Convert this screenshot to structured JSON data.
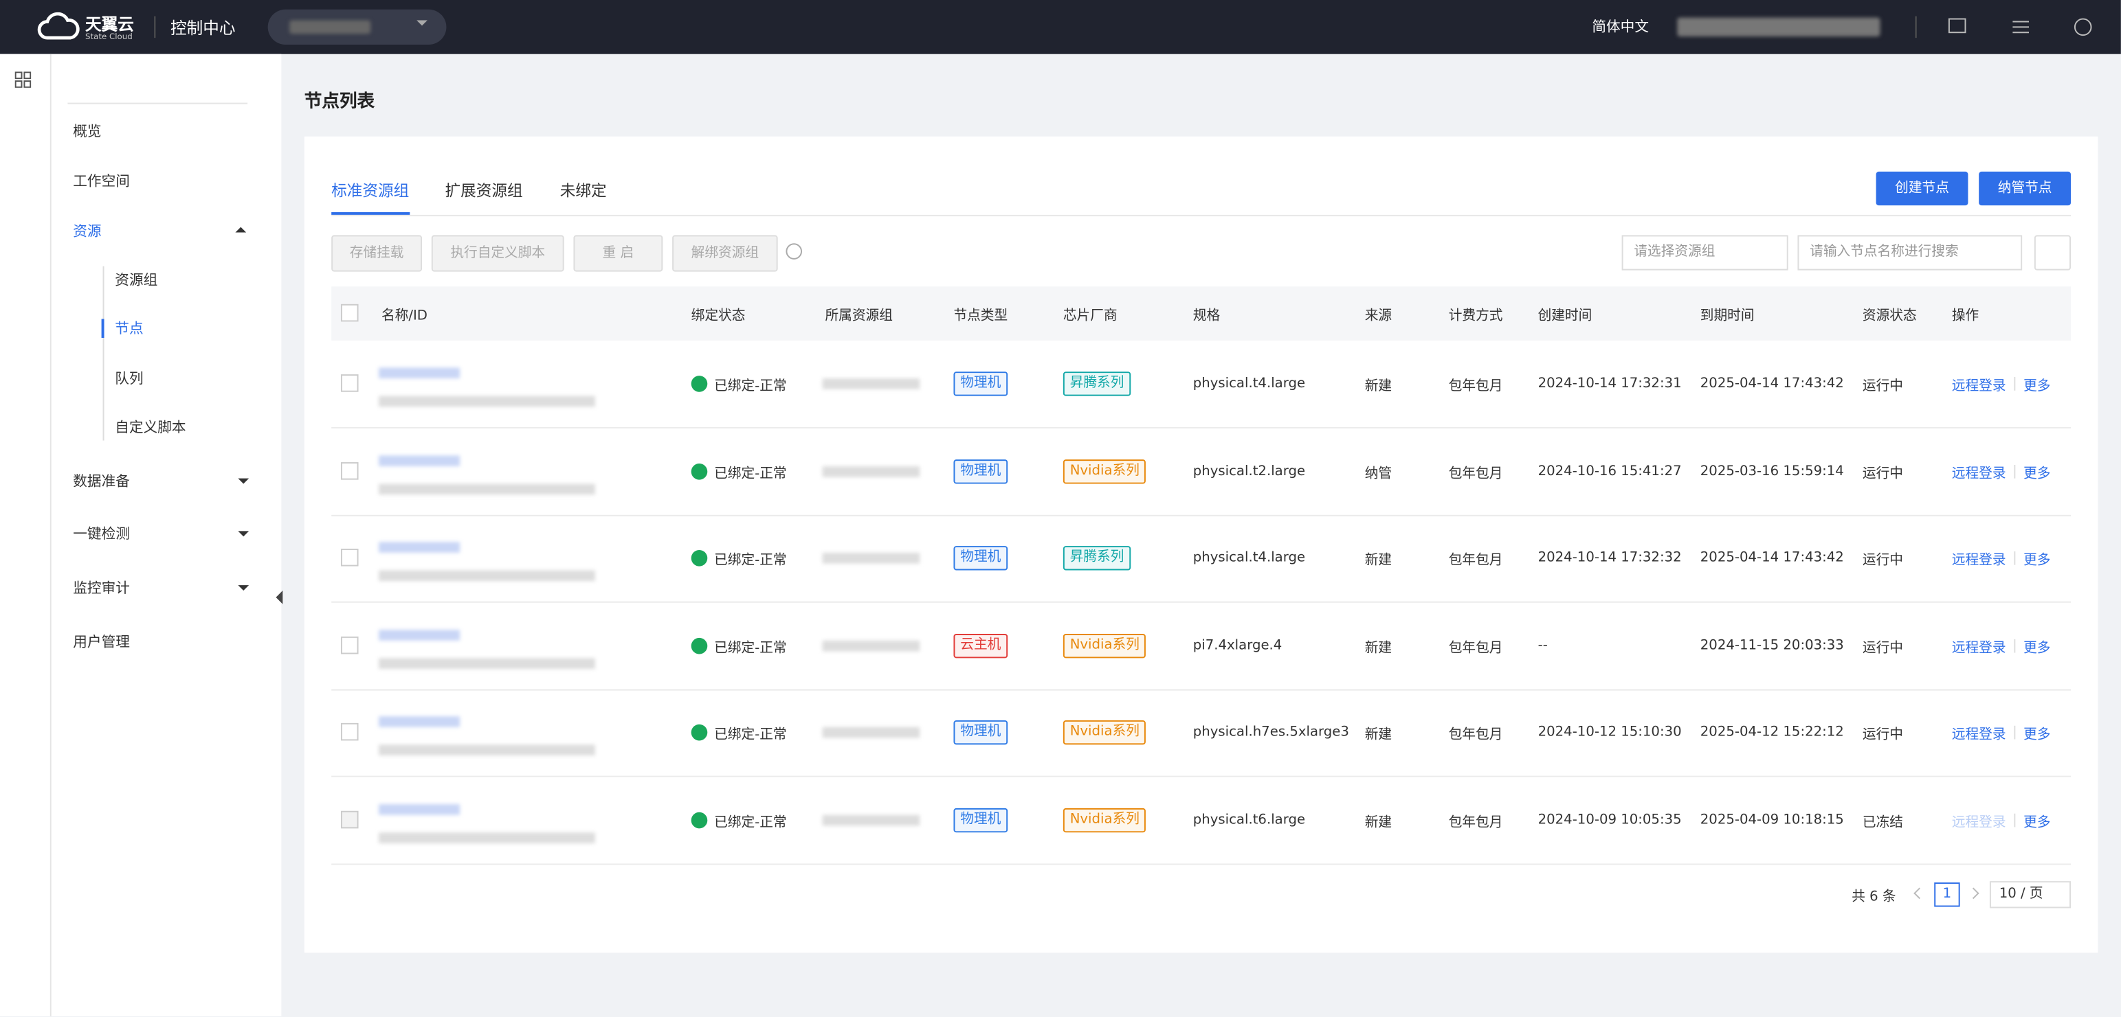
{
  "header": {
    "brand": "天翼云",
    "brand_sub": "State Cloud",
    "console": "控制中心",
    "language": "简体中文"
  },
  "sidebar": {
    "items": [
      "概览",
      "工作空间",
      "资源"
    ],
    "sub_items": [
      "资源组",
      "节点",
      "队列",
      "自定义脚本"
    ],
    "more_items": [
      "数据准备",
      "一键检测",
      "监控审计",
      "用户管理"
    ]
  },
  "page": {
    "title": "节点列表",
    "tabs": [
      "标准资源组",
      "扩展资源组",
      "未绑定"
    ],
    "primary_buttons": [
      "创建节点",
      "纳管节点"
    ],
    "toolbar_buttons": [
      "存储挂载",
      "执行自定义脚本",
      "重 启",
      "解绑资源组"
    ],
    "group_select_placeholder": "请选择资源组",
    "search_placeholder": "请输入节点名称进行搜索"
  },
  "table": {
    "columns": [
      "名称/ID",
      "绑定状态",
      "所属资源组",
      "节点类型",
      "芯片厂商",
      "规格",
      "来源",
      "计费方式",
      "创建时间",
      "到期时间",
      "资源状态",
      "操作"
    ],
    "rows": [
      {
        "binding": "已绑定-正常",
        "node_type": "物理机",
        "node_type_color": "#2f7be6",
        "chip_vendor": "昇腾系列",
        "chip_vendor_color": "#13a8a8",
        "spec": "physical.t4.large",
        "source": "新建",
        "billing": "包年包月",
        "created": "2024-10-14 17:32:31",
        "expires": "2025-04-14 17:43:42",
        "state": "运行中",
        "action_login": "远程登录",
        "action_login_disabled": false,
        "action_more": "更多"
      },
      {
        "binding": "已绑定-正常",
        "node_type": "物理机",
        "node_type_color": "#2f7be6",
        "chip_vendor": "Nvidia系列",
        "chip_vendor_color": "#e8890c",
        "spec": "physical.t2.large",
        "source": "纳管",
        "billing": "包年包月",
        "created": "2024-10-16 15:41:27",
        "expires": "2025-03-16 15:59:14",
        "state": "运行中",
        "action_login": "远程登录",
        "action_login_disabled": false,
        "action_more": "更多"
      },
      {
        "binding": "已绑定-正常",
        "node_type": "物理机",
        "node_type_color": "#2f7be6",
        "chip_vendor": "昇腾系列",
        "chip_vendor_color": "#13a8a8",
        "spec": "physical.t4.large",
        "source": "新建",
        "billing": "包年包月",
        "created": "2024-10-14 17:32:32",
        "expires": "2025-04-14 17:43:42",
        "state": "运行中",
        "action_login": "远程登录",
        "action_login_disabled": false,
        "action_more": "更多"
      },
      {
        "binding": "已绑定-正常",
        "node_type": "云主机",
        "node_type_color": "#e23c39",
        "chip_vendor": "Nvidia系列",
        "chip_vendor_color": "#e8890c",
        "spec": "pi7.4xlarge.4",
        "source": "新建",
        "billing": "包年包月",
        "created": "--",
        "expires": "2024-11-15 20:03:33",
        "state": "运行中",
        "action_login": "远程登录",
        "action_login_disabled": false,
        "action_more": "更多"
      },
      {
        "binding": "已绑定-正常",
        "node_type": "物理机",
        "node_type_color": "#2f7be6",
        "chip_vendor": "Nvidia系列",
        "chip_vendor_color": "#e8890c",
        "spec": "physical.h7es.5xlarge3",
        "source": "新建",
        "billing": "包年包月",
        "created": "2024-10-12 15:10:30",
        "expires": "2025-04-12 15:22:12",
        "state": "运行中",
        "action_login": "远程登录",
        "action_login_disabled": false,
        "action_more": "更多"
      },
      {
        "binding": "已绑定-正常",
        "node_type": "物理机",
        "node_type_color": "#2f7be6",
        "chip_vendor": "Nvidia系列",
        "chip_vendor_color": "#e8890c",
        "spec": "physical.t6.large",
        "source": "新建",
        "billing": "包年包月",
        "created": "2024-10-09 10:05:35",
        "expires": "2025-04-09 10:18:15",
        "state": "已冻结",
        "action_login": "远程登录",
        "action_login_disabled": true,
        "action_more": "更多"
      }
    ]
  },
  "pagination": {
    "total": "共 6 条",
    "current": "1",
    "page_size": "10 / 页"
  }
}
